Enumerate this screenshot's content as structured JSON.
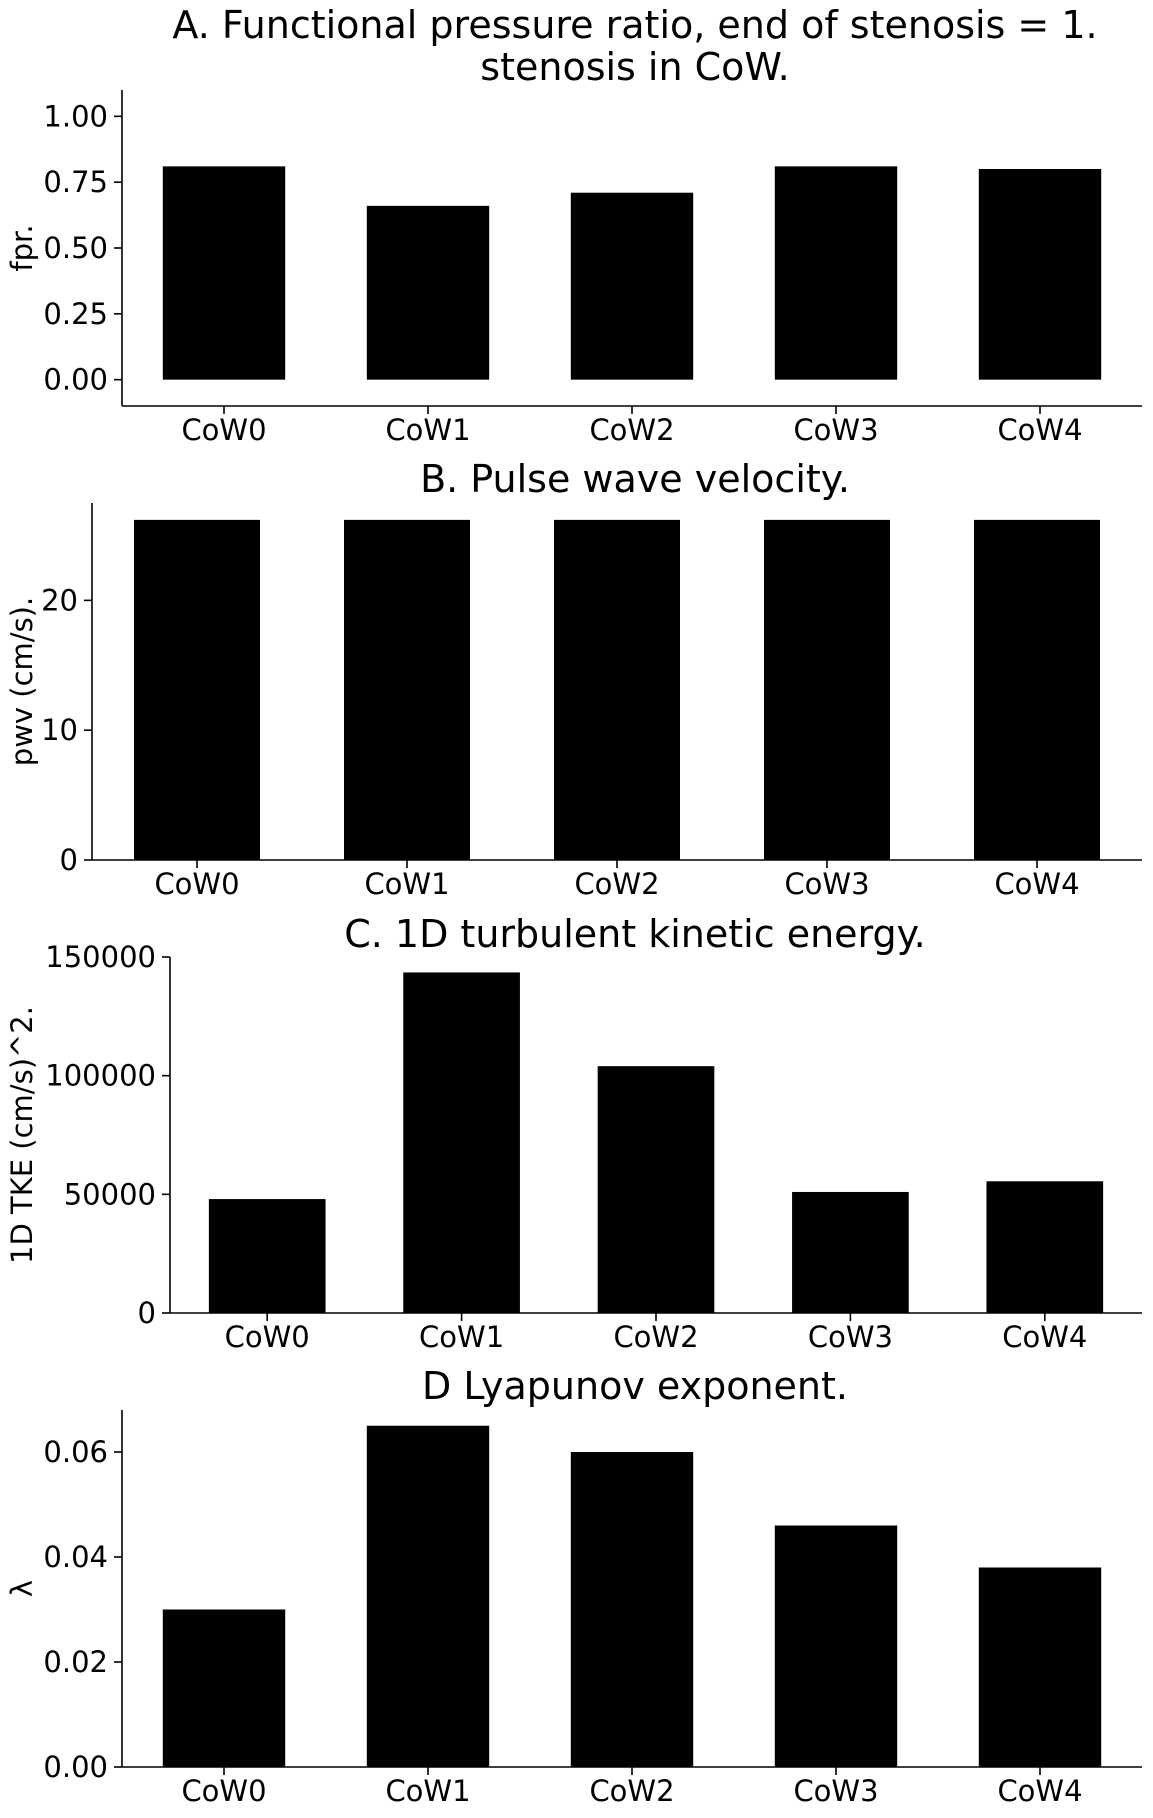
{
  "colors": {
    "bar": "#000000",
    "axis": "#000000",
    "background": "#ffffff"
  },
  "chart_data": [
    {
      "type": "bar",
      "title": "A. Functional pressure ratio, end of stenosis = 1.\nstenosis in CoW.",
      "xlabel": "",
      "ylabel": "fpr.",
      "categories": [
        "CoW0",
        "CoW1",
        "CoW2",
        "CoW3",
        "CoW4"
      ],
      "values": [
        0.81,
        0.66,
        0.71,
        0.81,
        0.8
      ],
      "ylim": [
        -0.1,
        1.1
      ],
      "yticks": [
        0.0,
        0.25,
        0.5,
        0.75,
        1.0
      ],
      "ytick_labels": [
        "0.00",
        "0.25",
        "0.50",
        "0.75",
        "1.00"
      ],
      "grid": false
    },
    {
      "type": "bar",
      "title": "B. Pulse wave velocity.",
      "xlabel": "",
      "ylabel": "pwv (cm/s).",
      "categories": [
        "CoW0",
        "CoW1",
        "CoW2",
        "CoW3",
        "CoW4"
      ],
      "values": [
        26.2,
        26.2,
        26.2,
        26.2,
        26.2
      ],
      "ylim": [
        0,
        27.5
      ],
      "yticks": [
        0,
        10,
        20
      ],
      "ytick_labels": [
        "0",
        "10",
        "20"
      ],
      "grid": false
    },
    {
      "type": "bar",
      "title": "C. 1D turbulent kinetic energy.",
      "xlabel": "",
      "ylabel": "1D TKE (cm/s)^2.",
      "categories": [
        "CoW0",
        "CoW1",
        "CoW2",
        "CoW3",
        "CoW4"
      ],
      "values": [
        48000,
        143500,
        104000,
        51000,
        55500
      ],
      "ylim": [
        0,
        150000
      ],
      "yticks": [
        0,
        50000,
        100000,
        150000
      ],
      "ytick_labels": [
        "0",
        "50000",
        "100000",
        "150000"
      ],
      "grid": false
    },
    {
      "type": "bar",
      "title": "D Lyapunov exponent.",
      "xlabel": "",
      "ylabel": "λ",
      "categories": [
        "CoW0",
        "CoW1",
        "CoW2",
        "CoW3",
        "CoW4"
      ],
      "values": [
        0.03,
        0.065,
        0.06,
        0.046,
        0.038
      ],
      "ylim": [
        0,
        0.068
      ],
      "yticks": [
        0.0,
        0.02,
        0.04,
        0.06
      ],
      "ytick_labels": [
        "0.00",
        "0.02",
        "0.04",
        "0.06"
      ],
      "grid": false
    }
  ]
}
